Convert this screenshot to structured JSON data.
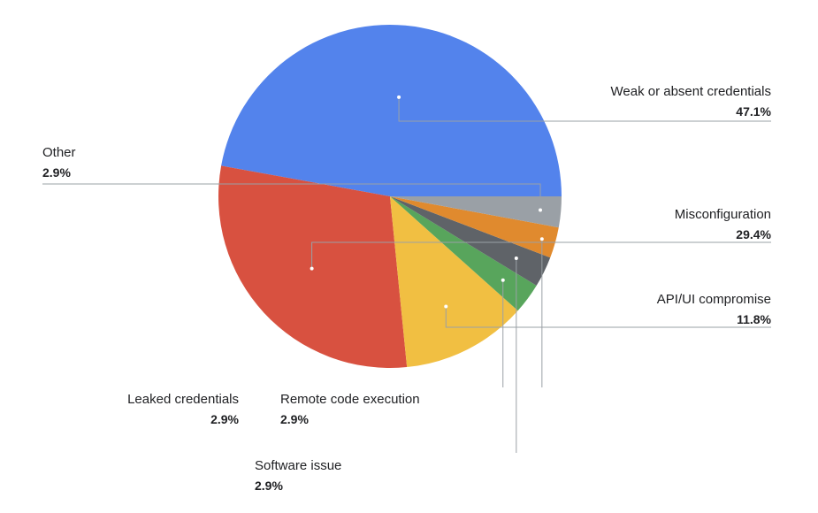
{
  "chart_data": {
    "type": "pie",
    "title": "",
    "slices": [
      {
        "label": "Weak or absent credentials",
        "value_label": "47.1%",
        "value": 47.1,
        "color": "#5383EC"
      },
      {
        "label": "Misconfiguration",
        "value_label": "29.4%",
        "value": 29.4,
        "color": "#D85140"
      },
      {
        "label": "API/UI compromise",
        "value_label": "11.8%",
        "value": 11.8,
        "color": "#F1BF42"
      },
      {
        "label": "Remote code execution",
        "value_label": "2.9%",
        "value": 2.9,
        "color": "#58A55C"
      },
      {
        "label": "Software issue",
        "value_label": "2.9%",
        "value": 2.9,
        "color": "#5F6368"
      },
      {
        "label": "Leaked credentials",
        "value_label": "2.9%",
        "value": 2.9,
        "color": "#E08A2E"
      },
      {
        "label": "Other",
        "value_label": "2.9%",
        "value": 2.9,
        "color": "#9AA0A6"
      }
    ]
  }
}
